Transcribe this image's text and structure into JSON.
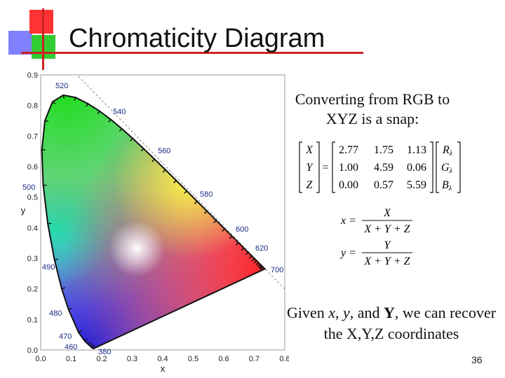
{
  "slide": {
    "title": "Chromaticity Diagram",
    "page_number": "36"
  },
  "text": {
    "intro": "Converting from RGB to XYZ is a snap:",
    "given_prefix": "Given ",
    "given_x": "x",
    "given_sep1": ", ",
    "given_y": "y",
    "given_sep2": ", and ",
    "given_Y": "Y",
    "given_suffix": ", we can recover the X,Y,Z coordinates"
  },
  "matrix": {
    "lhs": [
      "X",
      "Y",
      "Z"
    ],
    "rows": [
      [
        "2.77",
        "1.75",
        "1.13"
      ],
      [
        "1.00",
        "4.59",
        "0.06"
      ],
      [
        "0.00",
        "0.57",
        "5.59"
      ]
    ],
    "rhs": [
      "R",
      "G",
      "B"
    ],
    "rhs_subscript": "λ"
  },
  "formulas": {
    "x_lhs": "x =",
    "x_num": "X",
    "x_den": "X + Y + Z",
    "y_lhs": "y =",
    "y_num": "Y",
    "y_den": "X + Y + Z"
  },
  "diagram": {
    "x_label": "x",
    "y_label": "y",
    "x_ticks": [
      "0.0",
      "0.1",
      "0.2",
      "0.3",
      "0.4",
      "0.5",
      "0.6",
      "0.7",
      "0.8"
    ],
    "y_ticks": [
      "0.0",
      "0.1",
      "0.2",
      "0.3",
      "0.4",
      "0.5",
      "0.6",
      "0.7",
      "0.8",
      "0.9"
    ],
    "wavelength_labels": [
      "520",
      "540",
      "560",
      "580",
      "600",
      "620",
      "700",
      "500",
      "490",
      "480",
      "470",
      "460",
      "380"
    ],
    "colors": {
      "red": "#ff2020",
      "green": "#22dd22",
      "blue": "#2222dd",
      "label": "#1a2a88"
    }
  }
}
